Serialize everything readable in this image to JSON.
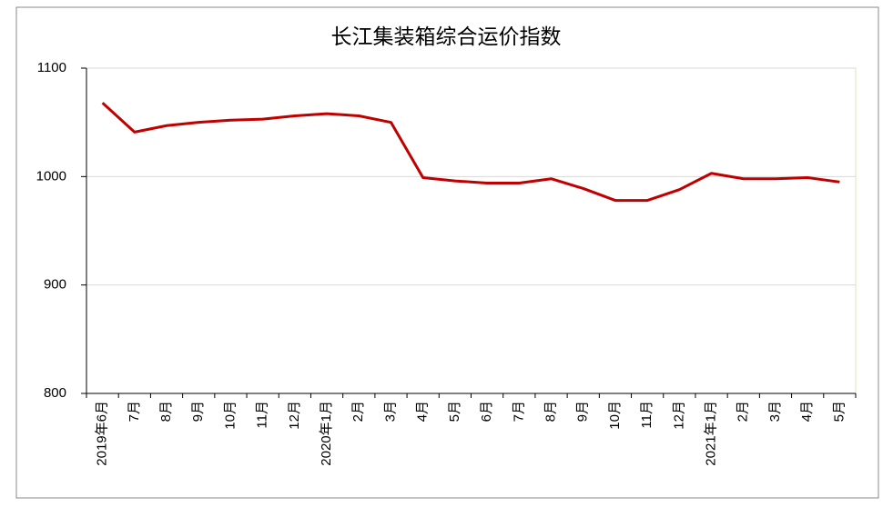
{
  "chart_data": {
    "type": "line",
    "title": "长江集装箱综合运价指数",
    "categories": [
      "2019年6月",
      "7月",
      "8月",
      "9月",
      "10月",
      "11月",
      "12月",
      "2020年1月",
      "2月",
      "3月",
      "4月",
      "5月",
      "6月",
      "7月",
      "8月",
      "9月",
      "10月",
      "11月",
      "12月",
      "2021年1月",
      "2月",
      "3月",
      "4月",
      "5月"
    ],
    "series": [
      {
        "name": "长江集装箱综合运价指数",
        "color": "#c00000",
        "values": [
          1068,
          1041,
          1047,
          1050,
          1052,
          1053,
          1056,
          1058,
          1056,
          1050,
          999,
          996,
          994,
          994,
          998,
          989,
          978,
          978,
          988,
          1003,
          998,
          998,
          999,
          995
        ]
      }
    ],
    "ylim": [
      800,
      1100
    ],
    "yticks": [
      800,
      900,
      1000,
      1100
    ],
    "grid": true
  }
}
